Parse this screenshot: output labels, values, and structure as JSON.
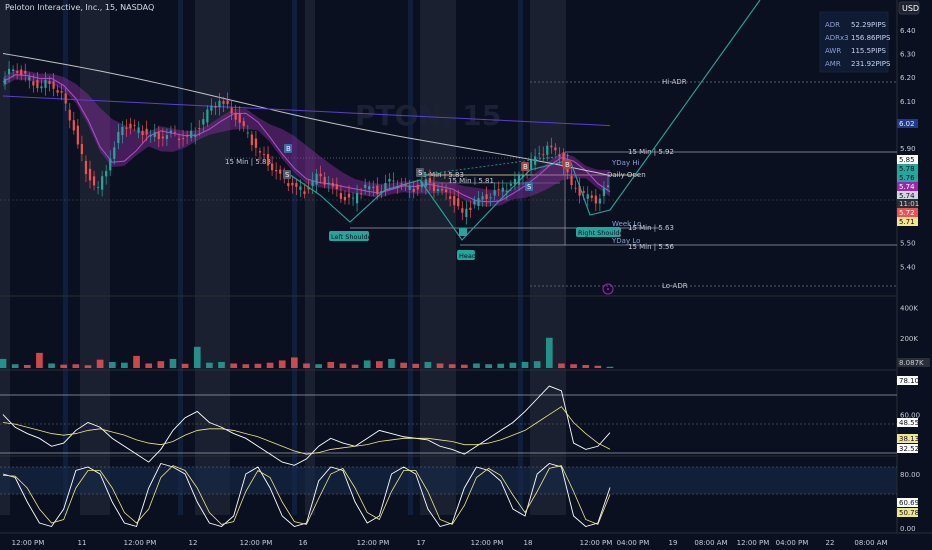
{
  "header": {
    "title": "Peloton Interactive, Inc., 15, NASDAQ",
    "currency": "USD"
  },
  "info_table": [
    {
      "label": "ADR",
      "value": "52.29PIPS"
    },
    {
      "label": "ADRx3",
      "value": "156.86PIPS"
    },
    {
      "label": "AWR",
      "value": "115.5PIPS"
    },
    {
      "label": "AMR",
      "value": "231.92PIPS"
    }
  ],
  "levels": [
    {
      "label": "Hi-ADR"
    },
    {
      "label": "15 Min | 5.92"
    },
    {
      "label": "YDay Hi"
    },
    {
      "label": "Daily Open"
    },
    {
      "label": "15 Min | 5.88"
    },
    {
      "label": "15 Min | 5.83"
    },
    {
      "label": "15 Min | 5.81"
    },
    {
      "label": "Week Lo"
    },
    {
      "label": "15 Min | 5.63"
    },
    {
      "label": "YDay Lo"
    },
    {
      "label": "15 Min | 5.56"
    },
    {
      "label": "Lo-ADR"
    }
  ],
  "pattern_labels": {
    "left_shoulder": "Left Shoulder",
    "head": "Head",
    "right_shoulder": "Right Shoulder"
  },
  "price_tags": [
    {
      "value": "6.02",
      "color": "#1f3a8a",
      "text_color": "#e8ecff"
    },
    {
      "value": "5.85",
      "color": "#ffffff",
      "text_color": "#0b1020"
    },
    {
      "value": "5.78",
      "color": "#26a69a",
      "text_color": "#0b1020"
    },
    {
      "value": "5.76",
      "color": "#26a69a",
      "text_color": "#0b1020"
    },
    {
      "value": "5.74",
      "color": "#9c27b0",
      "text_color": "#ffffff"
    },
    {
      "value": "5.74",
      "color": "#d1d4dc",
      "text_color": "#0b1020"
    },
    {
      "value": "11:01",
      "color": "#2a2e39",
      "text_color": "#d1d4dc"
    },
    {
      "value": "5.72",
      "color": "#ef5350",
      "text_color": "#ffffff"
    },
    {
      "value": "5.71",
      "color": "#f0e68c",
      "text_color": "#0b1020"
    }
  ],
  "volume_tag": "8.087K",
  "rsi_tags": [
    "78.10",
    "48.55",
    "38.13",
    "32.52"
  ],
  "stoch_tags": [
    "60.69",
    "50.78"
  ],
  "colors": {
    "up": "#26a69a",
    "down": "#ef5350",
    "background": "#0b1020",
    "session_band": "#1c2233",
    "ribbon": "#8e2fa3",
    "sma_white": "#e0e0e0",
    "sma_blue": "#5b3fd1",
    "pattern": "#26a69a"
  },
  "chart_data": [
    {
      "type": "candlestick",
      "title": "Peloton Interactive, Inc., 15, NASDAQ",
      "ylim": [
        5.3,
        6.45
      ],
      "y_ticks": [
        6.4,
        6.3,
        6.2,
        6.1,
        6.0,
        5.9,
        5.8,
        5.7,
        5.6,
        5.5,
        5.4
      ],
      "x_ticks": [
        "12:00 PM",
        "11",
        "12:00 PM",
        "12",
        "12:00 PM",
        "16",
        "12:00 PM",
        "17",
        "12:00 PM",
        "18",
        "12:00 PM",
        "04:00 PM",
        "19",
        "08:00 AM",
        "12:00 PM",
        "04:00 PM",
        "22",
        "08:00 AM"
      ],
      "close": [
        6.18,
        6.24,
        6.2,
        6.16,
        6.18,
        6.12,
        5.98,
        5.8,
        5.72,
        5.86,
        6.0,
        5.98,
        5.96,
        5.95,
        5.96,
        5.94,
        5.97,
        6.05,
        6.1,
        6.06,
        5.98,
        5.9,
        5.84,
        5.78,
        5.74,
        5.72,
        5.78,
        5.75,
        5.7,
        5.68,
        5.74,
        5.72,
        5.76,
        5.74,
        5.73,
        5.76,
        5.72,
        5.7,
        5.62,
        5.67,
        5.7,
        5.72,
        5.74,
        5.8,
        5.86,
        5.9,
        5.88,
        5.74,
        5.7,
        5.68,
        5.74
      ],
      "annotations": [
        "Left Shoulder",
        "Head",
        "Right Shoulder"
      ]
    },
    {
      "type": "bar",
      "title": "Volume",
      "y_ticks": [
        "400K",
        "200K"
      ],
      "current": "8.087K",
      "values": [
        60,
        25,
        20,
        100,
        30,
        22,
        25,
        18,
        55,
        40,
        35,
        80,
        30,
        45,
        60,
        28,
        140,
        35,
        40,
        30,
        25,
        28,
        35,
        50,
        70,
        30,
        25,
        40,
        30,
        22,
        50,
        45,
        60,
        35,
        28,
        40,
        30,
        25,
        22,
        30,
        25,
        28,
        35,
        40,
        45,
        200,
        30,
        25,
        20,
        15,
        8
      ],
      "ylim": [
        0,
        450
      ]
    },
    {
      "type": "line",
      "title": "RSI",
      "y_ticks": [
        78.1,
        60.0,
        48.55,
        38.13,
        32.52
      ],
      "series": [
        {
          "values": [
            60,
            52,
            48,
            45,
            40,
            42,
            50,
            55,
            52,
            45,
            40,
            35,
            30,
            38,
            50,
            58,
            62,
            55,
            52,
            48,
            45,
            40,
            35,
            30,
            28,
            32,
            40,
            45,
            42,
            40,
            45,
            50,
            48,
            46,
            45,
            44,
            40,
            38,
            35,
            40,
            45,
            50,
            55,
            62,
            70,
            78,
            75,
            42,
            38,
            40,
            48.55
          ]
        },
        {
          "values": [
            55,
            54,
            52,
            50,
            48,
            47,
            48,
            50,
            51,
            49,
            47,
            44,
            42,
            41,
            43,
            47,
            50,
            51,
            51,
            50,
            48,
            46,
            43,
            40,
            37,
            35,
            36,
            38,
            39,
            40,
            41,
            43,
            44,
            45,
            45,
            45,
            44,
            43,
            41,
            41,
            42,
            44,
            47,
            50,
            55,
            60,
            65,
            55,
            48,
            42,
            38.13
          ]
        }
      ],
      "ylim": [
        25,
        85
      ]
    },
    {
      "type": "line",
      "title": "Stochastic RSI",
      "y_ticks": [
        80.0,
        60.69,
        50.78,
        0.0
      ],
      "series": [
        {
          "values": [
            80,
            75,
            40,
            10,
            5,
            30,
            85,
            90,
            80,
            40,
            10,
            5,
            60,
            95,
            90,
            80,
            40,
            10,
            5,
            20,
            80,
            90,
            60,
            20,
            5,
            10,
            70,
            90,
            85,
            40,
            10,
            20,
            80,
            90,
            80,
            30,
            5,
            10,
            60,
            90,
            85,
            70,
            30,
            20,
            80,
            95,
            90,
            20,
            5,
            10,
            60.69
          ]
        },
        {
          "values": [
            78,
            77,
            60,
            30,
            10,
            15,
            60,
            85,
            85,
            60,
            25,
            10,
            30,
            75,
            92,
            85,
            60,
            25,
            8,
            12,
            55,
            85,
            75,
            40,
            12,
            8,
            45,
            80,
            88,
            60,
            25,
            15,
            55,
            85,
            85,
            55,
            15,
            8,
            35,
            75,
            88,
            78,
            50,
            25,
            55,
            88,
            92,
            55,
            15,
            8,
            50.78
          ]
        }
      ],
      "ylim": [
        0,
        100
      ]
    }
  ]
}
